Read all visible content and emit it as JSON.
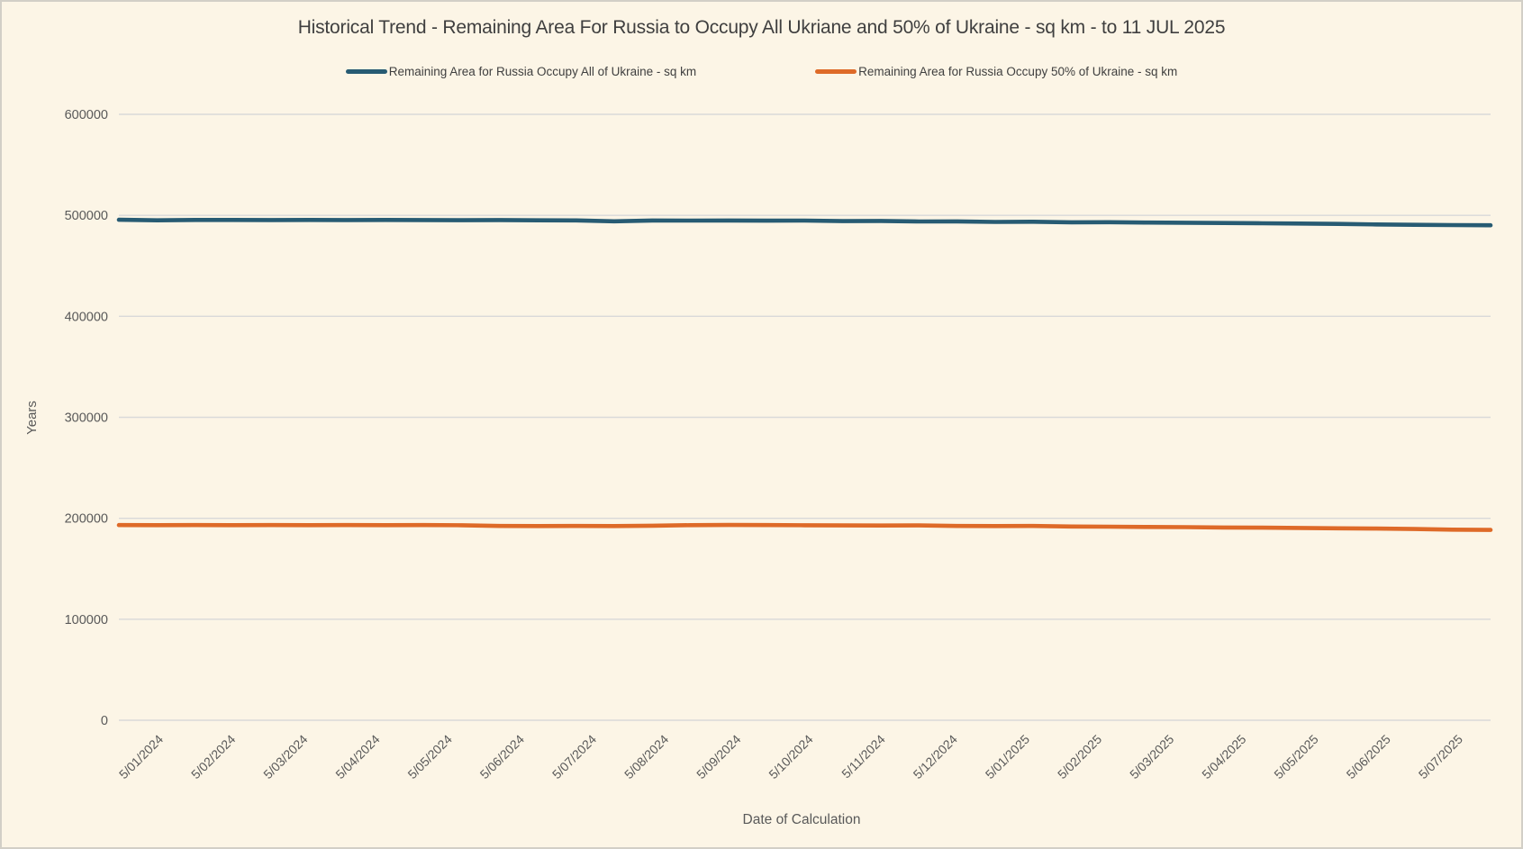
{
  "window": {
    "background_color": "#FCF5E6",
    "border_color": "#D2CFC7",
    "gridline_color": "#D9D9D9",
    "title_color": "#3F3F3F",
    "tick_color": "#595959"
  },
  "chart_data": {
    "type": "line",
    "title": "Historical Trend - Remaining Area For Russia to Occupy All Ukriane and 50% of Ukraine - sq km - to 11 JUL 2025",
    "xlabel": "Date of Calculation",
    "ylabel": "Years",
    "ylim": [
      0,
      600000
    ],
    "yticks": [
      0,
      100000,
      200000,
      300000,
      400000,
      500000,
      600000
    ],
    "grid": true,
    "legend_position": "top",
    "x_tick_rotation_deg": -45,
    "categories": [
      "5/01/2024",
      "5/02/2024",
      "5/03/2024",
      "5/04/2024",
      "5/05/2024",
      "5/06/2024",
      "5/07/2024",
      "5/08/2024",
      "5/09/2024",
      "5/10/2024",
      "5/11/2024",
      "5/12/2024",
      "5/01/2025",
      "5/02/2025",
      "5/03/2025",
      "5/04/2025",
      "5/05/2025",
      "5/06/2025",
      "5/07/2025"
    ],
    "x_spacing_note": "series sampled ~2x per labeled month, evenly spaced from first to last category",
    "series": [
      {
        "name": "Remaining Area for Russia Occupy All of Ukraine - sq km",
        "color": "#275B73",
        "values": [
          495600,
          495100,
          495400,
          495400,
          495300,
          495400,
          495300,
          495400,
          495300,
          495200,
          495300,
          495100,
          495000,
          494100,
          494900,
          494800,
          494900,
          494700,
          494800,
          494300,
          494400,
          493900,
          494000,
          493500,
          493600,
          493100,
          493200,
          492800,
          492700,
          492400,
          492100,
          491900,
          491500,
          491000,
          490600,
          490300,
          490200
        ]
      },
      {
        "name": "Remaining Area for Russia Occupy 50% of Ukraine - sq km",
        "color": "#DE6A28",
        "values": [
          193300,
          193200,
          193300,
          193200,
          193300,
          193200,
          193300,
          193200,
          193300,
          193100,
          192400,
          192300,
          192400,
          192300,
          192700,
          193200,
          193400,
          193300,
          193100,
          192900,
          192800,
          192900,
          192400,
          192300,
          192400,
          191900,
          191700,
          191400,
          191200,
          190900,
          190700,
          190400,
          190100,
          189800,
          189400,
          188700,
          188500
        ]
      }
    ]
  }
}
